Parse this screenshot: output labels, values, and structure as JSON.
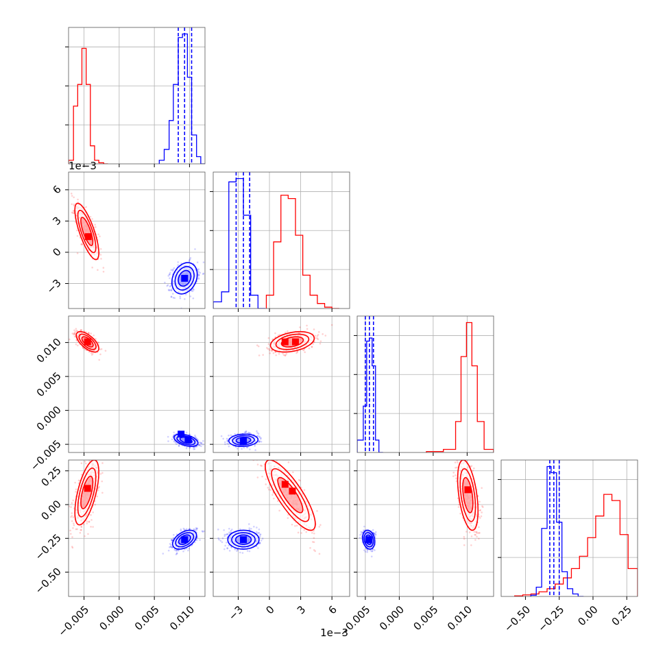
{
  "colors": {
    "red": "#ff0000",
    "blue": "#0000ff",
    "grid": "#b0b0b0",
    "frame": "#000000"
  },
  "chart_data": {
    "type": "corner",
    "grid": true,
    "params": [
      {
        "range": [
          -0.0072,
          0.0122
        ],
        "ticks": [
          -0.005,
          0.0,
          0.005,
          0.01
        ],
        "tick_labels": [
          "−0.005",
          "0.000",
          "0.005",
          "0.010"
        ]
      },
      {
        "range": [
          -0.0054,
          0.0077
        ],
        "ticks": [
          -0.003,
          0.0,
          0.003,
          0.006
        ],
        "tick_labels": [
          "−3",
          "0",
          "3",
          "6"
        ],
        "offset_text": "1e−3"
      },
      {
        "range": [
          -0.0062,
          0.0139
        ],
        "ticks": [
          -0.005,
          0.0,
          0.005,
          0.01
        ],
        "tick_labels": [
          "−0.005",
          "0.000",
          "0.005",
          "0.010"
        ]
      },
      {
        "range": [
          -0.68,
          0.33
        ],
        "ticks": [
          -0.5,
          -0.25,
          0.0,
          0.25
        ],
        "tick_labels": [
          "−0.50",
          "−0.25",
          "0.00",
          "0.25"
        ]
      }
    ],
    "series": [
      {
        "color": "red",
        "hist": [
          {
            "edges": [
              -0.0072,
              -0.0065,
              -0.0059,
              -0.0053,
              -0.0047,
              -0.0041,
              -0.0035,
              -0.0029,
              -0.0022,
              -0.0016
            ],
            "counts": [
              1,
              16,
              22,
              32,
              22,
              5,
              1,
              0.3,
              0
            ]
          },
          {
            "edges": [
              -0.0003,
              0.0004,
              0.0011,
              0.0018,
              0.0025,
              0.0032,
              0.0039,
              0.0046,
              0.0053,
              0.006,
              0.0067
            ],
            "counts": [
              4,
              20,
              34,
              33,
              22,
              10,
              4,
              1.5,
              0.4,
              0
            ]
          },
          {
            "edges": [
              0.004,
              0.0065,
              0.0083,
              0.0091,
              0.0099,
              0.0107,
              0.0115,
              0.0125,
              0.0139
            ],
            "counts": [
              0.3,
              1,
              10,
              31,
              42,
              28,
              10,
              1
            ]
          },
          {
            "edges": [
              -0.58,
              -0.52,
              -0.46,
              -0.4,
              -0.34,
              -0.28,
              -0.22,
              -0.16,
              -0.1,
              -0.04,
              0.02,
              0.08,
              0.14,
              0.2,
              0.26,
              0.33
            ],
            "counts": [
              0.2,
              0.5,
              0.8,
              1.5,
              2.5,
              4,
              6,
              9,
              13,
              19,
              26,
              33,
              31,
              20,
              9
            ]
          }
        ],
        "points": [
          {
            "pair": [
              0,
              1
            ],
            "mean": [
              -0.0046,
              0.002
            ],
            "sd": [
              0.00085,
              0.00135
            ],
            "corr": -0.76
          },
          {
            "pair": [
              0,
              2
            ],
            "mean": [
              -0.0045,
              0.0101
            ],
            "sd": [
              0.0008,
              0.00075
            ],
            "corr": -0.65
          },
          {
            "pair": [
              1,
              2
            ],
            "mean": [
              0.0022,
              0.0101
            ],
            "sd": [
              0.00105,
              0.00075
            ],
            "corr": 0.35
          },
          {
            "pair": [
              0,
              3
            ],
            "mean": [
              -0.0046,
              0.09
            ],
            "sd": [
              0.00085,
              0.12
            ],
            "corr": 0.62
          },
          {
            "pair": [
              1,
              3
            ],
            "mean": [
              0.002,
              0.07
            ],
            "sd": [
              0.0012,
              0.13
            ],
            "corr": -0.82
          },
          {
            "pair": [
              2,
              3
            ],
            "mean": [
              0.0101,
              0.07
            ],
            "sd": [
              0.00075,
              0.13
            ],
            "corr": -0.45
          }
        ],
        "centroids": [
          {
            "pair": [
              0,
              1
            ],
            "pts": [
              [
                -0.0044,
                0.0015
              ]
            ]
          },
          {
            "pair": [
              0,
              2
            ],
            "pts": [
              [
                -0.0045,
                0.0101
              ]
            ]
          },
          {
            "pair": [
              1,
              2
            ],
            "pts": [
              [
                0.0015,
                0.0101
              ],
              [
                0.0025,
                0.0101
              ]
            ]
          },
          {
            "pair": [
              0,
              3
            ],
            "pts": [
              [
                -0.0045,
                0.12
              ]
            ]
          },
          {
            "pair": [
              1,
              3
            ],
            "pts": [
              [
                0.0015,
                0.15
              ],
              [
                0.0022,
                0.1
              ]
            ]
          },
          {
            "pair": [
              2,
              3
            ],
            "pts": [
              [
                0.0101,
                0.11
              ]
            ]
          }
        ]
      },
      {
        "color": "blue",
        "hist": [
          {
            "edges": [
              0.0057,
              0.0064,
              0.0071,
              0.0077,
              0.0084,
              0.009,
              0.0097,
              0.0103,
              0.011,
              0.0116,
              0.0122
            ],
            "counts": [
              1,
              4,
              12,
              22,
              35,
              36,
              24,
              8,
              2,
              0
            ]
          },
          {
            "edges": [
              -0.0054,
              -0.0046,
              -0.0039,
              -0.0032,
              -0.0025,
              -0.0018,
              -0.0011,
              -0.0004
            ],
            "counts": [
              2,
              5,
              38,
              39,
              28,
              4,
              0
            ]
          },
          {
            "edges": [
              -0.0062,
              -0.0053,
              -0.0048,
              -0.0044,
              -0.004,
              -0.0035,
              -0.003,
              -0.0024
            ],
            "counts": [
              4,
              15,
              36,
              37,
              28,
              4,
              0
            ]
          },
          {
            "edges": [
              -0.46,
              -0.42,
              -0.38,
              -0.34,
              -0.31,
              -0.27,
              -0.23,
              -0.19,
              -0.15,
              -0.11,
              -0.07
            ],
            "counts": [
              0.4,
              3,
              22,
              42,
              40,
              24,
              8,
              2.5,
              0.8,
              0
            ]
          }
        ],
        "quantiles": [
          [
            0.0084,
            0.0093,
            0.0103
          ],
          [
            -0.0032,
            -0.0025,
            -0.0019
          ],
          [
            -0.005,
            -0.0044,
            -0.0038
          ],
          [
            -0.32,
            -0.29,
            -0.25
          ]
        ],
        "points": [
          {
            "pair": [
              0,
              1
            ],
            "mean": [
              0.0093,
              -0.0025
            ],
            "sd": [
              0.0009,
              0.00075
            ],
            "corr": 0.25
          },
          {
            "pair": [
              0,
              2
            ],
            "mean": [
              0.0095,
              -0.0044
            ],
            "sd": [
              0.00085,
              0.00045
            ],
            "corr": -0.45
          },
          {
            "pair": [
              1,
              2
            ],
            "mean": [
              -0.0025,
              -0.0044
            ],
            "sd": [
              0.0007,
              0.00045
            ],
            "corr": 0.1
          },
          {
            "pair": [
              0,
              3
            ],
            "mean": [
              0.0093,
              -0.26
            ],
            "sd": [
              0.00085,
              0.035
            ],
            "corr": 0.45
          },
          {
            "pair": [
              1,
              3
            ],
            "mean": [
              -0.0025,
              -0.26
            ],
            "sd": [
              0.00075,
              0.035
            ],
            "corr": 0.0
          },
          {
            "pair": [
              2,
              3
            ],
            "mean": [
              -0.0045,
              -0.26
            ],
            "sd": [
              0.00045,
              0.035
            ],
            "corr": -0.2
          }
        ],
        "centroids": [
          {
            "pair": [
              0,
              1
            ],
            "pts": [
              [
                0.0093,
                -0.0025
              ]
            ]
          },
          {
            "pair": [
              0,
              2
            ],
            "pts": [
              [
                0.0088,
                -0.0035
              ],
              [
                0.0098,
                -0.0043
              ]
            ]
          },
          {
            "pair": [
              1,
              2
            ],
            "pts": [
              [
                -0.0025,
                -0.0045
              ]
            ]
          },
          {
            "pair": [
              0,
              3
            ],
            "pts": [
              [
                0.0093,
                -0.26
              ]
            ]
          },
          {
            "pair": [
              1,
              3
            ],
            "pts": [
              [
                -0.0025,
                -0.26
              ]
            ]
          },
          {
            "pair": [
              2,
              3
            ],
            "pts": [
              [
                -0.0045,
                -0.26
              ]
            ]
          }
        ]
      }
    ]
  }
}
